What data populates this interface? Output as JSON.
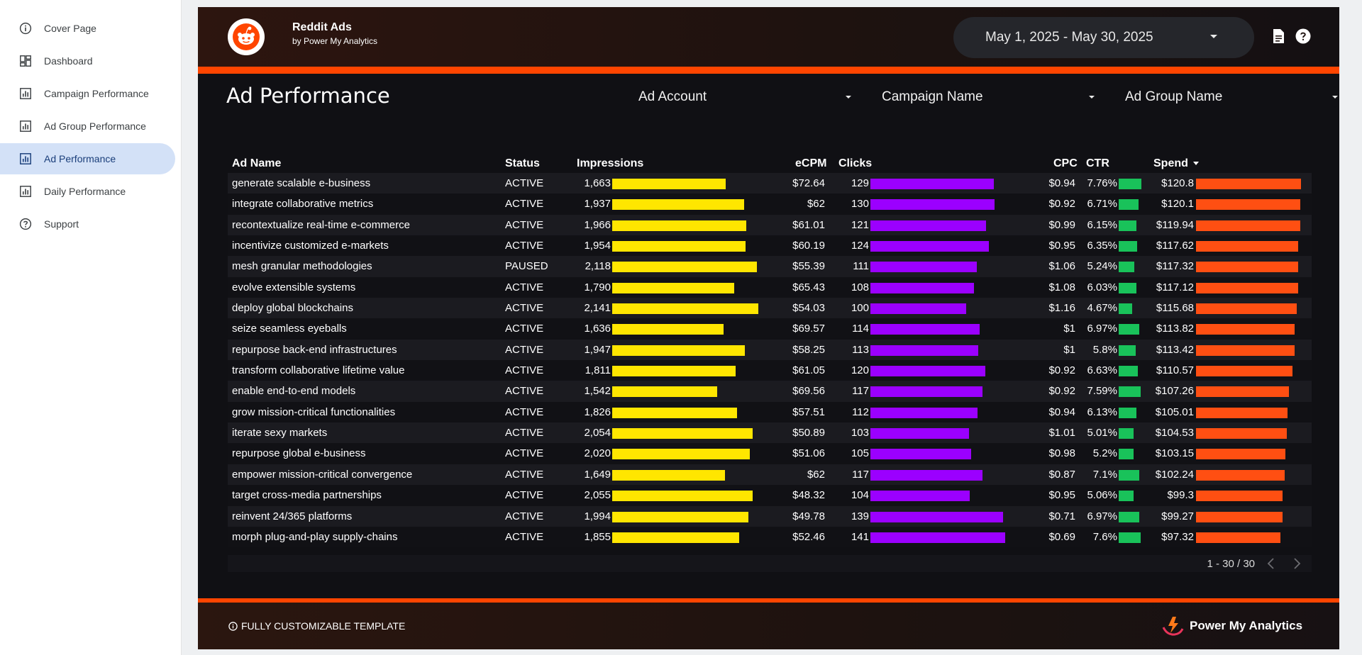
{
  "sidebar": {
    "items": [
      {
        "label": "Cover Page",
        "icon": "info-icon",
        "active": false
      },
      {
        "label": "Dashboard",
        "icon": "dashboard-icon",
        "active": false
      },
      {
        "label": "Campaign Performance",
        "icon": "report-icon",
        "active": false
      },
      {
        "label": "Ad Group Performance",
        "icon": "report-icon",
        "active": false
      },
      {
        "label": "Ad Performance",
        "icon": "report-icon",
        "active": true
      },
      {
        "label": "Daily Performance",
        "icon": "report-icon",
        "active": false
      },
      {
        "label": "Support",
        "icon": "help-icon",
        "active": false
      }
    ]
  },
  "header": {
    "title": "Reddit Ads",
    "subtitle": "by Power My Analytics",
    "date_range": "May 1, 2025 - May 30, 2025",
    "icons": [
      "document-icon",
      "help-icon"
    ]
  },
  "page": {
    "title": "Ad Performance"
  },
  "filters": {
    "ad_account": "Ad Account",
    "campaign_name": "Campaign Name",
    "ad_group_name": "Ad Group Name"
  },
  "table": {
    "columns": {
      "ad_name": "Ad Name",
      "status": "Status",
      "impressions": "Impressions",
      "ecpm": "eCPM",
      "clicks": "Clicks",
      "cpc": "CPC",
      "ctr": "CTR",
      "spend": "Spend"
    },
    "rows": [
      {
        "ad_name": "generate scalable e-business",
        "status": "ACTIVE",
        "impressions": "1,663",
        "ecpm": "$72.64",
        "clicks": "129",
        "cpc": "$0.94",
        "ctr": "7.76%",
        "spend": "$120.8",
        "impressions_value": 1663,
        "clicks_value": 129,
        "ctr_value": 7.76,
        "spend_value": 120.8
      },
      {
        "ad_name": "integrate collaborative metrics",
        "status": "ACTIVE",
        "impressions": "1,937",
        "ecpm": "$62",
        "clicks": "130",
        "cpc": "$0.92",
        "ctr": "6.71%",
        "spend": "$120.1",
        "impressions_value": 1937,
        "clicks_value": 130,
        "ctr_value": 6.71,
        "spend_value": 120.1
      },
      {
        "ad_name": "recontextualize real-time e-commerce",
        "status": "ACTIVE",
        "impressions": "1,966",
        "ecpm": "$61.01",
        "clicks": "121",
        "cpc": "$0.99",
        "ctr": "6.15%",
        "spend": "$119.94",
        "impressions_value": 1966,
        "clicks_value": 121,
        "ctr_value": 6.15,
        "spend_value": 119.94
      },
      {
        "ad_name": "incentivize customized e-markets",
        "status": "ACTIVE",
        "impressions": "1,954",
        "ecpm": "$60.19",
        "clicks": "124",
        "cpc": "$0.95",
        "ctr": "6.35%",
        "spend": "$117.62",
        "impressions_value": 1954,
        "clicks_value": 124,
        "ctr_value": 6.35,
        "spend_value": 117.62
      },
      {
        "ad_name": "mesh granular methodologies",
        "status": "PAUSED",
        "impressions": "2,118",
        "ecpm": "$55.39",
        "clicks": "111",
        "cpc": "$1.06",
        "ctr": "5.24%",
        "spend": "$117.32",
        "impressions_value": 2118,
        "clicks_value": 111,
        "ctr_value": 5.24,
        "spend_value": 117.32
      },
      {
        "ad_name": "evolve extensible systems",
        "status": "ACTIVE",
        "impressions": "1,790",
        "ecpm": "$65.43",
        "clicks": "108",
        "cpc": "$1.08",
        "ctr": "6.03%",
        "spend": "$117.12",
        "impressions_value": 1790,
        "clicks_value": 108,
        "ctr_value": 6.03,
        "spend_value": 117.12
      },
      {
        "ad_name": "deploy global blockchains",
        "status": "ACTIVE",
        "impressions": "2,141",
        "ecpm": "$54.03",
        "clicks": "100",
        "cpc": "$1.16",
        "ctr": "4.67%",
        "spend": "$115.68",
        "impressions_value": 2141,
        "clicks_value": 100,
        "ctr_value": 4.67,
        "spend_value": 115.68
      },
      {
        "ad_name": "seize seamless eyeballs",
        "status": "ACTIVE",
        "impressions": "1,636",
        "ecpm": "$69.57",
        "clicks": "114",
        "cpc": "$1",
        "ctr": "6.97%",
        "spend": "$113.82",
        "impressions_value": 1636,
        "clicks_value": 114,
        "ctr_value": 6.97,
        "spend_value": 113.82
      },
      {
        "ad_name": "repurpose back-end infrastructures",
        "status": "ACTIVE",
        "impressions": "1,947",
        "ecpm": "$58.25",
        "clicks": "113",
        "cpc": "$1",
        "ctr": "5.8%",
        "spend": "$113.42",
        "impressions_value": 1947,
        "clicks_value": 113,
        "ctr_value": 5.8,
        "spend_value": 113.42
      },
      {
        "ad_name": "transform collaborative lifetime value",
        "status": "ACTIVE",
        "impressions": "1,811",
        "ecpm": "$61.05",
        "clicks": "120",
        "cpc": "$0.92",
        "ctr": "6.63%",
        "spend": "$110.57",
        "impressions_value": 1811,
        "clicks_value": 120,
        "ctr_value": 6.63,
        "spend_value": 110.57
      },
      {
        "ad_name": "enable end-to-end models",
        "status": "ACTIVE",
        "impressions": "1,542",
        "ecpm": "$69.56",
        "clicks": "117",
        "cpc": "$0.92",
        "ctr": "7.59%",
        "spend": "$107.26",
        "impressions_value": 1542,
        "clicks_value": 117,
        "ctr_value": 7.59,
        "spend_value": 107.26
      },
      {
        "ad_name": "grow mission-critical functionalities",
        "status": "ACTIVE",
        "impressions": "1,826",
        "ecpm": "$57.51",
        "clicks": "112",
        "cpc": "$0.94",
        "ctr": "6.13%",
        "spend": "$105.01",
        "impressions_value": 1826,
        "clicks_value": 112,
        "ctr_value": 6.13,
        "spend_value": 105.01
      },
      {
        "ad_name": "iterate sexy markets",
        "status": "ACTIVE",
        "impressions": "2,054",
        "ecpm": "$50.89",
        "clicks": "103",
        "cpc": "$1.01",
        "ctr": "5.01%",
        "spend": "$104.53",
        "impressions_value": 2054,
        "clicks_value": 103,
        "ctr_value": 5.01,
        "spend_value": 104.53
      },
      {
        "ad_name": "repurpose global e-business",
        "status": "ACTIVE",
        "impressions": "2,020",
        "ecpm": "$51.06",
        "clicks": "105",
        "cpc": "$0.98",
        "ctr": "5.2%",
        "spend": "$103.15",
        "impressions_value": 2020,
        "clicks_value": 105,
        "ctr_value": 5.2,
        "spend_value": 103.15
      },
      {
        "ad_name": "empower mission-critical convergence",
        "status": "ACTIVE",
        "impressions": "1,649",
        "ecpm": "$62",
        "clicks": "117",
        "cpc": "$0.87",
        "ctr": "7.1%",
        "spend": "$102.24",
        "impressions_value": 1649,
        "clicks_value": 117,
        "ctr_value": 7.1,
        "spend_value": 102.24
      },
      {
        "ad_name": "target cross-media partnerships",
        "status": "ACTIVE",
        "impressions": "2,055",
        "ecpm": "$48.32",
        "clicks": "104",
        "cpc": "$0.95",
        "ctr": "5.06%",
        "spend": "$99.3",
        "impressions_value": 2055,
        "clicks_value": 104,
        "ctr_value": 5.06,
        "spend_value": 99.3
      },
      {
        "ad_name": "reinvent 24/365 platforms",
        "status": "ACTIVE",
        "impressions": "1,994",
        "ecpm": "$49.78",
        "clicks": "139",
        "cpc": "$0.71",
        "ctr": "6.97%",
        "spend": "$99.27",
        "impressions_value": 1994,
        "clicks_value": 139,
        "ctr_value": 6.97,
        "spend_value": 99.27
      },
      {
        "ad_name": "morph plug-and-play supply-chains",
        "status": "ACTIVE",
        "impressions": "1,855",
        "ecpm": "$52.46",
        "clicks": "141",
        "cpc": "$0.69",
        "ctr": "7.6%",
        "spend": "$97.32",
        "impressions_value": 1855,
        "clicks_value": 141,
        "ctr_value": 7.6,
        "spend_value": 97.32
      }
    ],
    "pagination": "1 - 30 / 30"
  },
  "footer": {
    "note": "FULLY CUSTOMIZABLE TEMPLATE",
    "brand": "Power My Analytics"
  },
  "colors": {
    "brand_orange": "#ff4500",
    "impressions_bar": "#ffe600",
    "clicks_bar": "#9b00ff",
    "ctr_bar": "#19c25a",
    "spend_bar": "#ff4f12",
    "active_nav": "#d3e1f7"
  }
}
